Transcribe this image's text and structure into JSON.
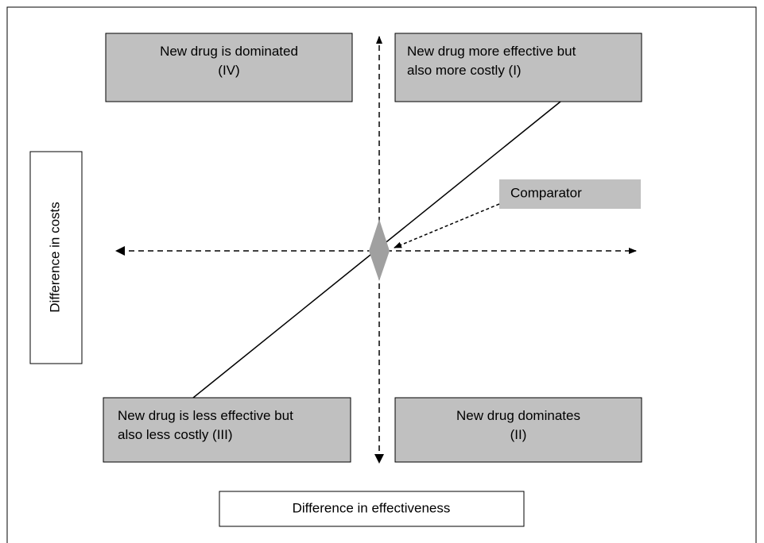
{
  "quadrants": [
    {
      "id": "IV",
      "lines": [
        "New drug is dominated",
        "(IV)"
      ]
    },
    {
      "id": "I",
      "lines": [
        "New drug more effective but",
        "also more costly (I)"
      ]
    },
    {
      "id": "III",
      "lines": [
        "New drug is less effective but",
        "also less costly (III)"
      ]
    },
    {
      "id": "II",
      "lines": [
        "New drug dominates",
        "(II)"
      ]
    }
  ],
  "comparator": "Comparator",
  "y_axis_label": "Difference in costs",
  "x_axis_label": "Difference in effectiveness"
}
